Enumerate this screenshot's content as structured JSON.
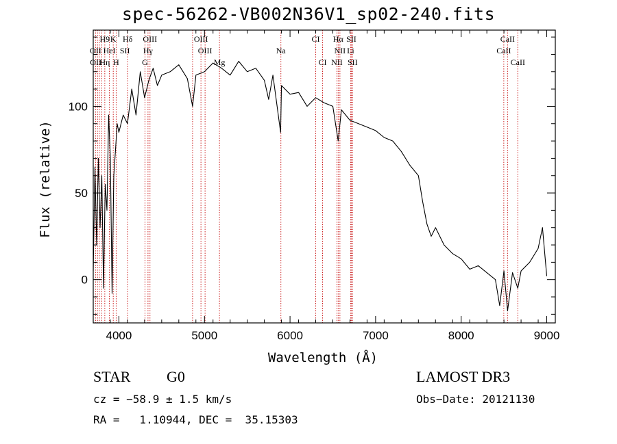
{
  "chart_data": {
    "type": "line",
    "title": "spec-56262-VB002N36V1_sp02-240.fits",
    "xlabel": "Wavelength (Å)",
    "ylabel": "Flux (relative)",
    "xlim": [
      3700,
      9100
    ],
    "ylim": [
      -25,
      144
    ],
    "x_ticks": [
      4000,
      5000,
      6000,
      7000,
      8000,
      9000
    ],
    "y_ticks": [
      0,
      50,
      100
    ],
    "series": [
      {
        "name": "flux",
        "x": [
          3700,
          3720,
          3740,
          3760,
          3780,
          3800,
          3820,
          3840,
          3860,
          3880,
          3900,
          3920,
          3940,
          3960,
          3980,
          4000,
          4050,
          4100,
          4150,
          4200,
          4250,
          4300,
          4350,
          4400,
          4450,
          4500,
          4600,
          4700,
          4800,
          4861,
          4900,
          5000,
          5100,
          5200,
          5300,
          5400,
          5500,
          5600,
          5700,
          5750,
          5800,
          5890,
          5900,
          6000,
          6100,
          6200,
          6300,
          6400,
          6500,
          6563,
          6600,
          6700,
          6800,
          6900,
          7000,
          7100,
          7200,
          7300,
          7400,
          7500,
          7550,
          7600,
          7650,
          7700,
          7800,
          7900,
          8000,
          8100,
          8200,
          8300,
          8400,
          8450,
          8500,
          8542,
          8600,
          8662,
          8700,
          8800,
          8900,
          8950,
          9000
        ],
        "y": [
          5,
          65,
          20,
          70,
          30,
          60,
          -5,
          55,
          40,
          95,
          70,
          -8,
          60,
          75,
          90,
          85,
          95,
          90,
          110,
          95,
          120,
          105,
          115,
          122,
          112,
          118,
          120,
          124,
          116,
          100,
          118,
          120,
          125,
          122,
          118,
          126,
          120,
          122,
          115,
          104,
          118,
          85,
          112,
          107,
          108,
          100,
          105,
          102,
          100,
          80,
          98,
          92,
          90,
          88,
          86,
          82,
          80,
          74,
          66,
          60,
          45,
          32,
          25,
          30,
          20,
          15,
          12,
          6,
          8,
          4,
          0,
          -15,
          5,
          -18,
          4,
          -5,
          5,
          10,
          18,
          30,
          2
        ]
      }
    ],
    "line_labels": [
      {
        "text": "H9",
        "x": 3835
      },
      {
        "text": "K",
        "x": 3934
      },
      {
        "text": "Hδ",
        "x": 4102
      },
      {
        "text": "OIII",
        "x": 4363
      },
      {
        "text": "OIII",
        "x": 4959
      },
      {
        "text": "CI",
        "x": 6300
      },
      {
        "text": "Hα",
        "x": 6563
      },
      {
        "text": "SII",
        "x": 6716
      },
      {
        "text": "CaII",
        "x": 8542
      },
      {
        "text": "OII",
        "x": 3727
      },
      {
        "text": "HeI",
        "x": 3889
      },
      {
        "text": "SII",
        "x": 4070
      },
      {
        "text": "Hγ",
        "x": 4340
      },
      {
        "text": "OIII",
        "x": 5007
      },
      {
        "text": "Na",
        "x": 5893
      },
      {
        "text": "NII",
        "x": 6583
      },
      {
        "text": "Li",
        "x": 6708
      },
      {
        "text": "CaII",
        "x": 8498
      },
      {
        "text": "OII",
        "x": 3729
      },
      {
        "text": "Hη",
        "x": 3835
      },
      {
        "text": "H",
        "x": 3968
      },
      {
        "text": "G",
        "x": 4305
      },
      {
        "text": "Mg",
        "x": 5175
      },
      {
        "text": "CI",
        "x": 6380
      },
      {
        "text": "NII",
        "x": 6548
      },
      {
        "text": "SII",
        "x": 6731
      },
      {
        "text": "CaII",
        "x": 8662
      }
    ],
    "marker_lines_x": [
      3727,
      3750,
      3771,
      3798,
      3835,
      3889,
      3934,
      3968,
      4102,
      4305,
      4340,
      4363,
      4861,
      4959,
      5007,
      5175,
      5893,
      6300,
      6380,
      6548,
      6563,
      6583,
      6708,
      6716,
      6731,
      8498,
      8542,
      8662
    ]
  },
  "info": {
    "class": "STAR",
    "subclass": "G0",
    "survey": "LAMOST DR3",
    "cz": "cz = −58.9 ± 1.5 km/s",
    "obs_date": "Obs−Date: 20121130",
    "radec": "RA =   1.10944, DEC =  35.15303"
  },
  "colors": {
    "line": "#000000",
    "marker": "#cc2222"
  }
}
